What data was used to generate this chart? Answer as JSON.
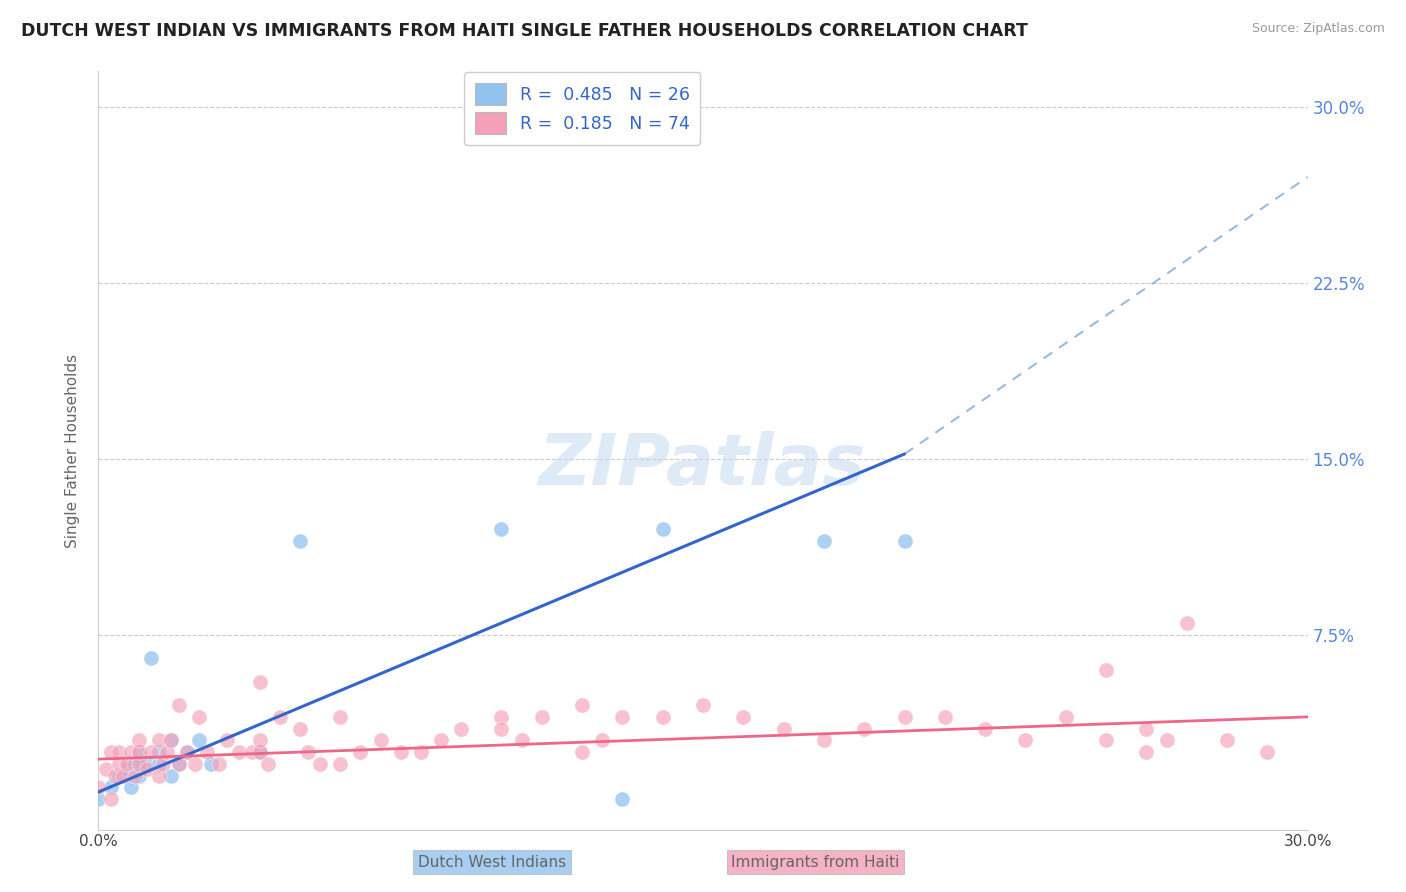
{
  "title": "DUTCH WEST INDIAN VS IMMIGRANTS FROM HAITI SINGLE FATHER HOUSEHOLDS CORRELATION CHART",
  "source": "Source: ZipAtlas.com",
  "ylabel": "Single Father Households",
  "ytick_values": [
    0.0,
    0.075,
    0.15,
    0.225,
    0.3
  ],
  "ytick_labels": [
    "",
    "7.5%",
    "15.0%",
    "22.5%",
    "30.0%"
  ],
  "xlim": [
    0.0,
    0.3
  ],
  "ylim": [
    -0.008,
    0.315
  ],
  "color_blue": "#92C2EE",
  "color_pink": "#F4A0B8",
  "line_blue": "#3366CC",
  "line_pink": "#EE6688",
  "line_dashed_color": "#99BBDD",
  "watermark_text": "ZIPatlas",
  "watermark_color": "#C8DCF0",
  "legend_label1": "R =  0.485   N = 26",
  "legend_label2": "R =  0.185   N = 74",
  "blue_line_x0": 0.0,
  "blue_line_y0": 0.008,
  "blue_line_x1": 0.2,
  "blue_line_y1": 0.152,
  "dashed_line_x0": 0.2,
  "dashed_line_y0": 0.152,
  "dashed_line_x1": 0.3,
  "dashed_line_y1": 0.27,
  "pink_line_x0": 0.0,
  "pink_line_y0": 0.022,
  "pink_line_x1": 0.3,
  "pink_line_y1": 0.04,
  "dutch_x": [
    0.0,
    0.003,
    0.005,
    0.007,
    0.008,
    0.009,
    0.01,
    0.01,
    0.01,
    0.012,
    0.013,
    0.015,
    0.015,
    0.018,
    0.018,
    0.02,
    0.022,
    0.025,
    0.028,
    0.04,
    0.05,
    0.1,
    0.13,
    0.14,
    0.18,
    0.2
  ],
  "dutch_y": [
    0.005,
    0.01,
    0.015,
    0.018,
    0.01,
    0.02,
    0.015,
    0.02,
    0.025,
    0.02,
    0.065,
    0.02,
    0.025,
    0.015,
    0.03,
    0.02,
    0.025,
    0.03,
    0.02,
    0.025,
    0.115,
    0.12,
    0.005,
    0.12,
    0.115,
    0.115
  ],
  "haiti_x": [
    0.0,
    0.002,
    0.003,
    0.003,
    0.004,
    0.005,
    0.005,
    0.006,
    0.007,
    0.008,
    0.009,
    0.01,
    0.01,
    0.01,
    0.012,
    0.013,
    0.015,
    0.015,
    0.016,
    0.017,
    0.018,
    0.02,
    0.02,
    0.022,
    0.024,
    0.025,
    0.027,
    0.03,
    0.032,
    0.035,
    0.038,
    0.04,
    0.04,
    0.042,
    0.045,
    0.05,
    0.052,
    0.055,
    0.06,
    0.065,
    0.07,
    0.075,
    0.08,
    0.085,
    0.09,
    0.1,
    0.105,
    0.11,
    0.12,
    0.125,
    0.13,
    0.14,
    0.15,
    0.16,
    0.17,
    0.18,
    0.19,
    0.2,
    0.21,
    0.22,
    0.23,
    0.24,
    0.25,
    0.26,
    0.265,
    0.27,
    0.28,
    0.29,
    0.25,
    0.26,
    0.1,
    0.12,
    0.06,
    0.04
  ],
  "haiti_y": [
    0.01,
    0.018,
    0.025,
    0.005,
    0.015,
    0.02,
    0.025,
    0.015,
    0.02,
    0.025,
    0.015,
    0.02,
    0.025,
    0.03,
    0.018,
    0.025,
    0.015,
    0.03,
    0.02,
    0.025,
    0.03,
    0.02,
    0.045,
    0.025,
    0.02,
    0.04,
    0.025,
    0.02,
    0.03,
    0.025,
    0.025,
    0.025,
    0.03,
    0.02,
    0.04,
    0.035,
    0.025,
    0.02,
    0.02,
    0.025,
    0.03,
    0.025,
    0.025,
    0.03,
    0.035,
    0.04,
    0.03,
    0.04,
    0.045,
    0.03,
    0.04,
    0.04,
    0.045,
    0.04,
    0.035,
    0.03,
    0.035,
    0.04,
    0.04,
    0.035,
    0.03,
    0.04,
    0.03,
    0.025,
    0.03,
    0.08,
    0.03,
    0.025,
    0.06,
    0.035,
    0.035,
    0.025,
    0.04,
    0.055
  ]
}
